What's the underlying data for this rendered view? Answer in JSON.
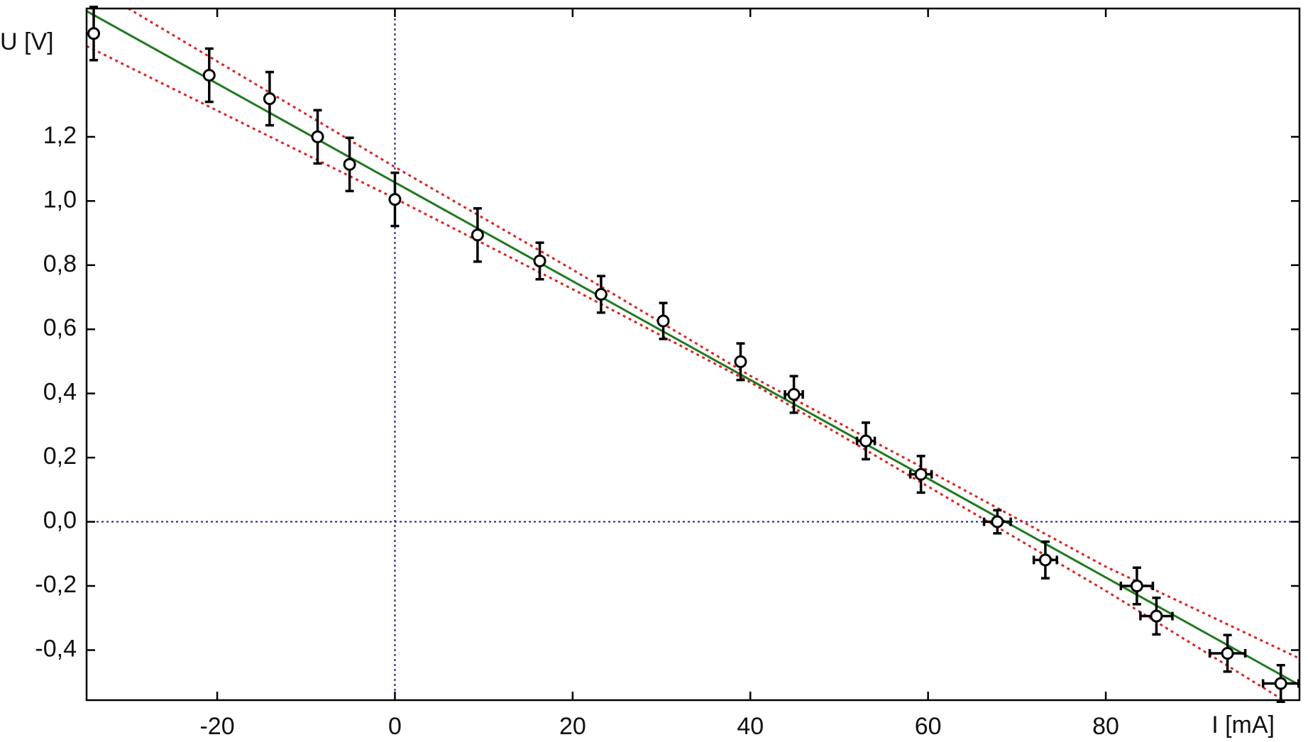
{
  "chart_data": {
    "type": "scatter",
    "x_label": "I  [mA]",
    "y_label": "U  [V]",
    "xlim": [
      -34.7,
      101.8
    ],
    "ylim": [
      -0.556,
      1.6
    ],
    "xticks": [
      -20,
      0,
      20,
      40,
      60,
      80
    ],
    "yticks": [
      {
        "value": -0.4,
        "label": "-0,4"
      },
      {
        "value": -0.2,
        "label": "-0,2"
      },
      {
        "value": 0,
        "label": "0,0"
      },
      {
        "value": 0.2,
        "label": "0,2"
      },
      {
        "value": 0.4,
        "label": "0,4"
      },
      {
        "value": 0.6,
        "label": "0,6"
      },
      {
        "value": 0.8,
        "label": "0,8"
      },
      {
        "value": 1.0,
        "label": "1,0"
      },
      {
        "value": 1.2,
        "label": "1,2"
      }
    ],
    "reference_lines": {
      "x": [
        0
      ],
      "y": [
        0
      ],
      "color": "#1c1c8c"
    },
    "points": {
      "color": "#000000",
      "x": [
        -33.9,
        -20.9,
        -14.1,
        -8.7,
        -5.1,
        0,
        9.3,
        16.3,
        23.2,
        30.2,
        38.9,
        44.9,
        53.0,
        59.2,
        67.8,
        73.2,
        83.5,
        85.7,
        93.7,
        99.7
      ],
      "values": [
        1.522,
        1.392,
        1.319,
        1.2,
        1.114,
        1.005,
        0.894,
        0.813,
        0.709,
        0.626,
        0.499,
        0.397,
        0.252,
        0.148,
        0.0,
        -0.119,
        -0.2,
        -0.294,
        -0.41,
        -0.504
      ],
      "y_errors": [
        0.083,
        0.083,
        0.083,
        0.083,
        0.083,
        0.083,
        0.083,
        0.057,
        0.057,
        0.056,
        0.057,
        0.057,
        0.057,
        0.057,
        0.036,
        0.057,
        0.057,
        0.057,
        0.057,
        0.057
      ],
      "x_errors": [
        0,
        0,
        0,
        0,
        0,
        0,
        0,
        0,
        0,
        0,
        0,
        1.0,
        1.0,
        1.2,
        1.5,
        1.3,
        1.8,
        1.8,
        2.0,
        2.0
      ]
    },
    "lines": [
      {
        "color": "#1f7a1f",
        "dash": false,
        "x": [
          -34.7,
          101.8
        ],
        "values": [
          1.592,
          -0.509
        ]
      },
      {
        "color": "#e02020",
        "dash": true,
        "x": [
          -30,
          0,
          20,
          40,
          60,
          80,
          101.8
        ],
        "values": [
          1.6,
          1.106,
          0.786,
          0.455,
          0.16,
          -0.14,
          -0.426
        ]
      },
      {
        "color": "#e02020",
        "dash": true,
        "x": [
          -34.7,
          0,
          20,
          40,
          60,
          80,
          100
        ],
        "values": [
          1.483,
          1.008,
          0.725,
          0.435,
          0.11,
          -0.215,
          -0.556
        ]
      }
    ]
  }
}
